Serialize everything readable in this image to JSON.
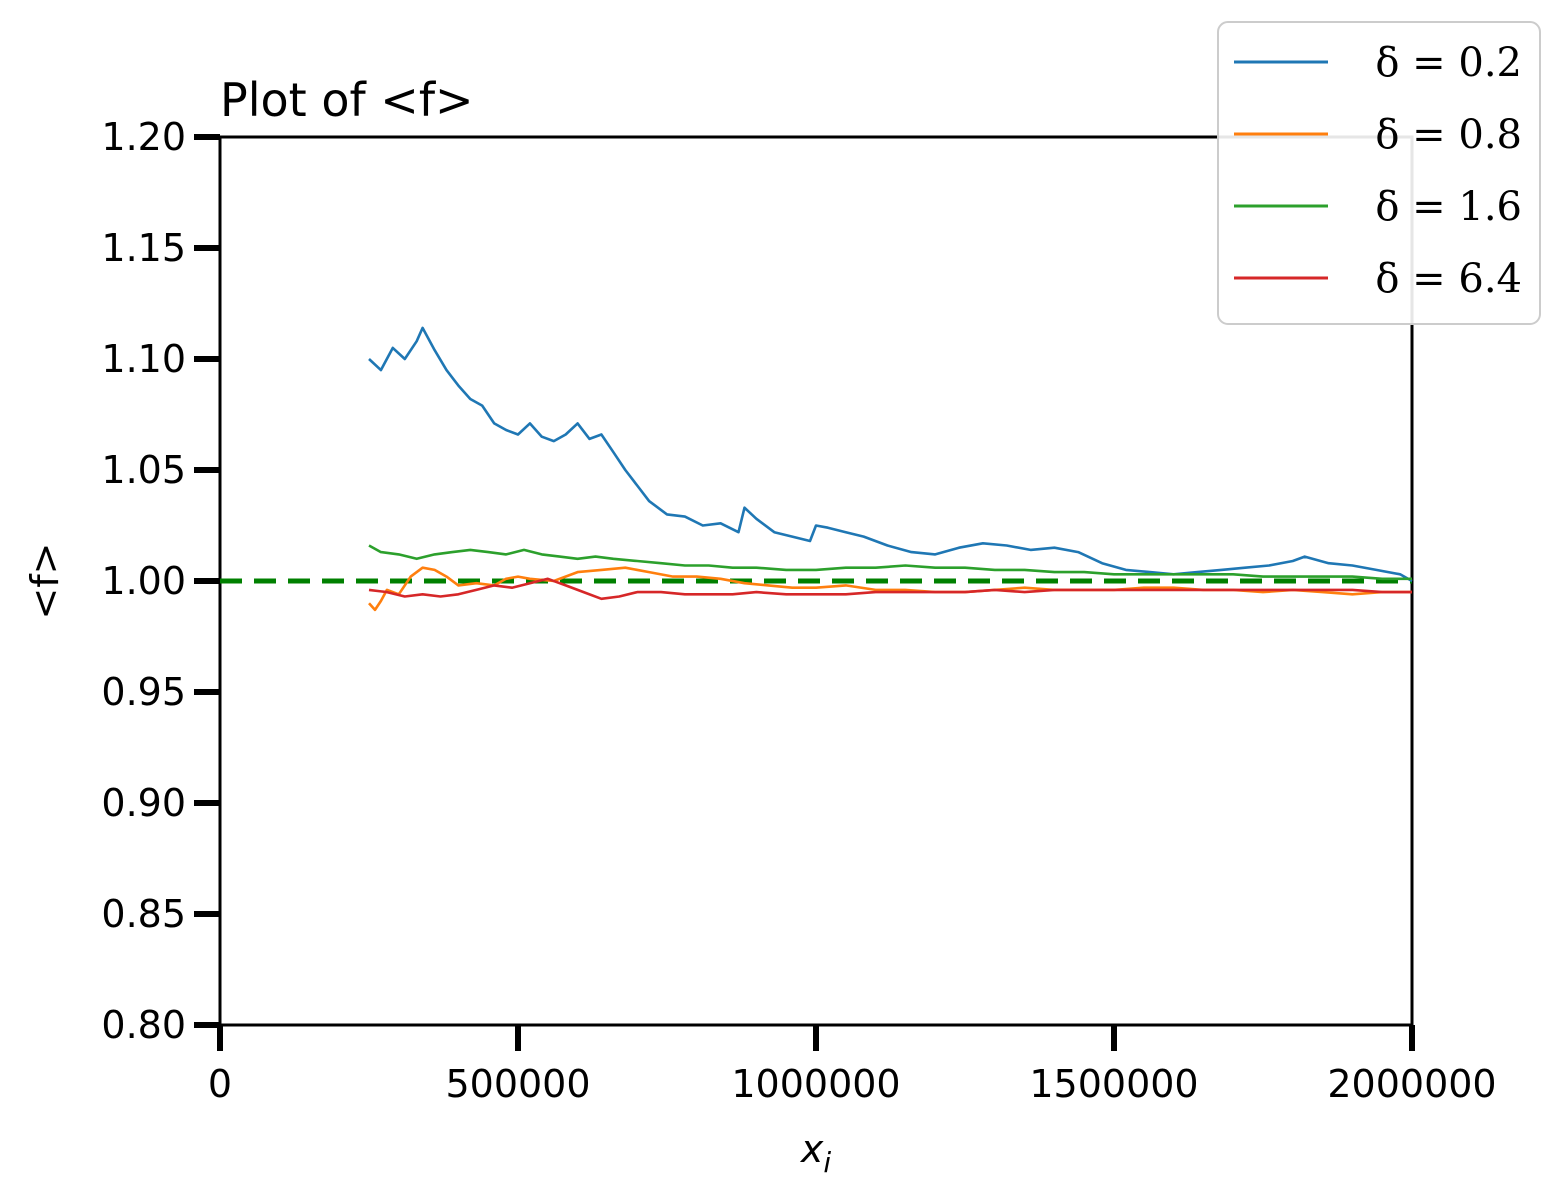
{
  "chart_data": {
    "type": "line",
    "title": "Plot of <f>",
    "xlabel": "x_i",
    "xlabel_base": "x",
    "xlabel_sub": "i",
    "ylabel": "<f>",
    "xlim": [
      0,
      2000000
    ],
    "ylim": [
      0.8,
      1.2
    ],
    "x_ticks": [
      0,
      500000,
      1000000,
      1500000,
      2000000
    ],
    "x_tick_labels": [
      "0",
      "500000",
      "1000000",
      "1500000",
      "2000000"
    ],
    "y_ticks": [
      0.8,
      0.85,
      0.9,
      0.95,
      1.0,
      1.05,
      1.1,
      1.15,
      1.2
    ],
    "y_tick_labels": [
      "0.80",
      "0.85",
      "0.90",
      "0.95",
      "1.00",
      "1.05",
      "1.10",
      "1.15",
      "1.20"
    ],
    "grid": false,
    "legend_position": "top-right",
    "series": [
      {
        "name": "δ = 0.2",
        "color": "#1f77b4",
        "x": [
          250000,
          270000,
          290000,
          310000,
          330000,
          340000,
          360000,
          380000,
          400000,
          420000,
          440000,
          460000,
          480000,
          500000,
          520000,
          540000,
          560000,
          580000,
          600000,
          620000,
          640000,
          660000,
          680000,
          700000,
          720000,
          750000,
          780000,
          810000,
          840000,
          870000,
          880000,
          900000,
          930000,
          960000,
          990000,
          1000000,
          1020000,
          1050000,
          1080000,
          1120000,
          1160000,
          1200000,
          1240000,
          1280000,
          1320000,
          1360000,
          1400000,
          1440000,
          1480000,
          1520000,
          1560000,
          1600000,
          1640000,
          1680000,
          1720000,
          1760000,
          1800000,
          1820000,
          1860000,
          1900000,
          1940000,
          1980000,
          2000000
        ],
        "y": [
          1.1,
          1.095,
          1.105,
          1.1,
          1.108,
          1.114,
          1.104,
          1.095,
          1.088,
          1.082,
          1.079,
          1.071,
          1.068,
          1.066,
          1.071,
          1.065,
          1.063,
          1.066,
          1.071,
          1.064,
          1.066,
          1.058,
          1.05,
          1.043,
          1.036,
          1.03,
          1.029,
          1.025,
          1.026,
          1.022,
          1.033,
          1.028,
          1.022,
          1.02,
          1.018,
          1.025,
          1.024,
          1.022,
          1.02,
          1.016,
          1.013,
          1.012,
          1.015,
          1.017,
          1.016,
          1.014,
          1.015,
          1.013,
          1.008,
          1.005,
          1.004,
          1.003,
          1.004,
          1.005,
          1.006,
          1.007,
          1.009,
          1.011,
          1.008,
          1.007,
          1.005,
          1.003,
          1.0
        ]
      },
      {
        "name": "δ = 0.8",
        "color": "#ff7f0e",
        "x": [
          250000,
          260000,
          270000,
          280000,
          300000,
          320000,
          340000,
          360000,
          380000,
          400000,
          430000,
          460000,
          480000,
          500000,
          520000,
          560000,
          600000,
          640000,
          680000,
          720000,
          760000,
          800000,
          840000,
          880000,
          920000,
          960000,
          1000000,
          1050000,
          1100000,
          1150000,
          1200000,
          1250000,
          1300000,
          1350000,
          1400000,
          1450000,
          1500000,
          1550000,
          1600000,
          1650000,
          1700000,
          1750000,
          1800000,
          1850000,
          1900000,
          1950000,
          2000000
        ],
        "y": [
          0.99,
          0.987,
          0.991,
          0.996,
          0.994,
          1.002,
          1.006,
          1.005,
          1.002,
          0.998,
          0.999,
          0.998,
          1.001,
          1.002,
          1.001,
          1.0,
          1.004,
          1.005,
          1.006,
          1.004,
          1.002,
          1.002,
          1.001,
          0.999,
          0.998,
          0.997,
          0.997,
          0.998,
          0.996,
          0.996,
          0.995,
          0.995,
          0.996,
          0.997,
          0.996,
          0.996,
          0.996,
          0.997,
          0.997,
          0.996,
          0.996,
          0.995,
          0.996,
          0.995,
          0.994,
          0.995,
          0.995
        ]
      },
      {
        "name": "δ = 1.6",
        "color": "#2ca02c",
        "x": [
          250000,
          270000,
          300000,
          330000,
          360000,
          390000,
          420000,
          450000,
          480000,
          510000,
          540000,
          570000,
          600000,
          630000,
          660000,
          700000,
          740000,
          780000,
          820000,
          860000,
          900000,
          950000,
          1000000,
          1050000,
          1100000,
          1150000,
          1200000,
          1250000,
          1300000,
          1350000,
          1400000,
          1450000,
          1500000,
          1550000,
          1600000,
          1650000,
          1700000,
          1750000,
          1800000,
          1850000,
          1900000,
          1950000,
          2000000
        ],
        "y": [
          1.016,
          1.013,
          1.012,
          1.01,
          1.012,
          1.013,
          1.014,
          1.013,
          1.012,
          1.014,
          1.012,
          1.011,
          1.01,
          1.011,
          1.01,
          1.009,
          1.008,
          1.007,
          1.007,
          1.006,
          1.006,
          1.005,
          1.005,
          1.006,
          1.006,
          1.007,
          1.006,
          1.006,
          1.005,
          1.005,
          1.004,
          1.004,
          1.003,
          1.003,
          1.003,
          1.003,
          1.003,
          1.002,
          1.002,
          1.002,
          1.002,
          1.001,
          1.001
        ]
      },
      {
        "name": "δ = 6.4",
        "color": "#d62728",
        "x": [
          250000,
          280000,
          310000,
          340000,
          370000,
          400000,
          430000,
          460000,
          490000,
          520000,
          550000,
          580000,
          610000,
          640000,
          670000,
          700000,
          740000,
          780000,
          820000,
          860000,
          900000,
          950000,
          1000000,
          1050000,
          1100000,
          1150000,
          1200000,
          1250000,
          1300000,
          1350000,
          1400000,
          1450000,
          1500000,
          1550000,
          1600000,
          1650000,
          1700000,
          1750000,
          1800000,
          1850000,
          1900000,
          1950000,
          2000000
        ],
        "y": [
          0.996,
          0.995,
          0.993,
          0.994,
          0.993,
          0.994,
          0.996,
          0.998,
          0.997,
          0.999,
          1.001,
          0.998,
          0.995,
          0.992,
          0.993,
          0.995,
          0.995,
          0.994,
          0.994,
          0.994,
          0.995,
          0.994,
          0.994,
          0.994,
          0.995,
          0.995,
          0.995,
          0.995,
          0.996,
          0.995,
          0.996,
          0.996,
          0.996,
          0.996,
          0.996,
          0.996,
          0.996,
          0.996,
          0.996,
          0.996,
          0.996,
          0.995,
          0.995
        ]
      }
    ],
    "reference_line": {
      "y": 1.0,
      "color": "#008000",
      "style": "dashed"
    }
  }
}
